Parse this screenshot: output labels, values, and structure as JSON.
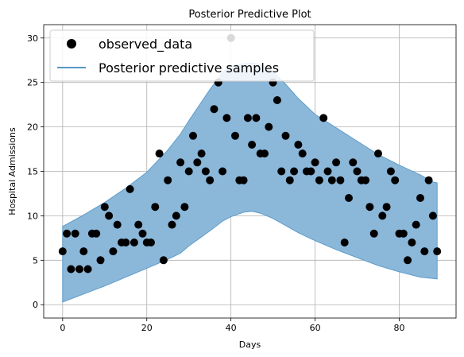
{
  "chart_data": {
    "type": "scatter",
    "title": "Posterior Predictive Plot",
    "xlabel": "Days",
    "ylabel": "Hospital Admissions",
    "xlim": [
      -4.5,
      93.5
    ],
    "ylim": [
      -1.5,
      31.5
    ],
    "xticks": [
      0,
      20,
      40,
      60,
      80
    ],
    "yticks": [
      0,
      5,
      10,
      15,
      20,
      25,
      30
    ],
    "grid": true,
    "legend": {
      "placement": "top-left",
      "entries": [
        "observed_data",
        "Posterior predictive samples"
      ]
    },
    "colors": {
      "points": "#000000",
      "band_fill": "#8bb7d9",
      "band_edge": "#5f9dcc",
      "line": "#1f77b4"
    },
    "series": [
      {
        "name": "observed_data",
        "kind": "scatter",
        "x": [
          0,
          1,
          2,
          3,
          4,
          5,
          6,
          7,
          8,
          9,
          10,
          11,
          12,
          13,
          14,
          15,
          16,
          17,
          18,
          19,
          20,
          21,
          22,
          23,
          24,
          25,
          26,
          27,
          28,
          29,
          30,
          31,
          32,
          33,
          34,
          35,
          36,
          37,
          38,
          39,
          40,
          41,
          42,
          43,
          44,
          45,
          46,
          47,
          48,
          49,
          50,
          51,
          52,
          53,
          54,
          55,
          56,
          57,
          58,
          59,
          60,
          61,
          62,
          63,
          64,
          65,
          66,
          67,
          68,
          69,
          70,
          71,
          72,
          73,
          74,
          75,
          76,
          77,
          78,
          79,
          80,
          81,
          82,
          83,
          84,
          85,
          86,
          87,
          88,
          89
        ],
        "y": [
          6,
          8,
          4,
          8,
          4,
          6,
          4,
          8,
          8,
          5,
          11,
          10,
          6,
          9,
          7,
          7,
          13,
          7,
          9,
          8,
          7,
          7,
          11,
          17,
          5,
          14,
          9,
          10,
          16,
          11,
          15,
          19,
          16,
          17,
          15,
          14,
          22,
          25,
          15,
          21,
          30,
          19,
          14,
          14,
          21,
          18,
          21,
          17,
          17,
          20,
          25,
          23,
          15,
          19,
          14,
          15,
          18,
          17,
          15,
          15,
          16,
          14,
          21,
          15,
          14,
          16,
          14,
          7,
          12,
          16,
          15,
          14,
          14,
          11,
          8,
          17,
          10,
          11,
          15,
          14,
          8,
          8,
          5,
          7,
          9,
          12,
          6,
          14,
          10,
          6
        ]
      },
      {
        "name": "Posterior predictive samples",
        "kind": "band",
        "x": [
          0,
          5,
          10,
          15,
          20,
          25,
          28,
          30,
          35,
          38,
          40,
          43,
          45,
          47,
          50,
          53,
          56,
          60,
          65,
          70,
          75,
          80,
          85,
          88,
          89
        ],
        "lower": [
          0.3,
          1.2,
          2.1,
          3.1,
          4.1,
          5.1,
          5.8,
          6.6,
          8.3,
          9.4,
          9.9,
          10.4,
          10.5,
          10.3,
          9.7,
          8.9,
          8.1,
          7.2,
          6.2,
          5.3,
          4.4,
          3.7,
          3.1,
          2.95,
          2.9
        ],
        "upper": [
          8.8,
          10.1,
          11.5,
          13.1,
          14.9,
          17.4,
          19.2,
          20.7,
          24.2,
          26.1,
          26.9,
          27.1,
          27.2,
          27.0,
          26.2,
          24.8,
          23.2,
          21.4,
          19.9,
          18.4,
          16.9,
          15.7,
          14.6,
          13.8,
          13.7
        ]
      }
    ]
  }
}
